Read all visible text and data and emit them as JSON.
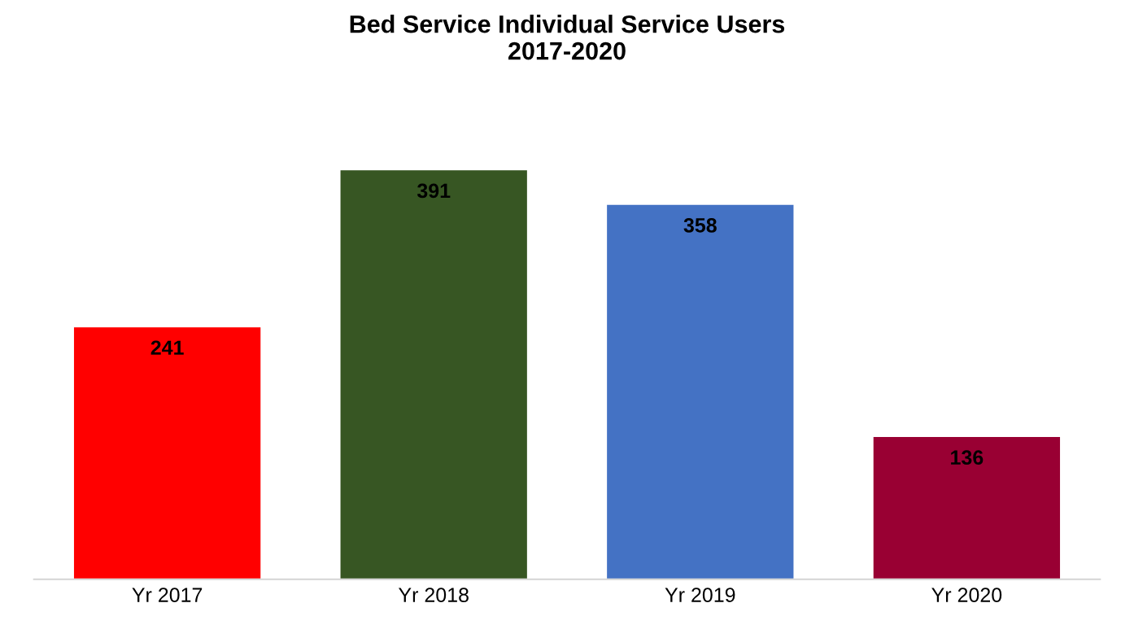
{
  "chart_data": {
    "type": "bar",
    "title": "Bed Service Individual Service Users\n2017-2020",
    "categories": [
      "Yr 2017",
      "Yr 2018",
      "Yr 2019",
      "Yr 2020"
    ],
    "values": [
      241,
      391,
      358,
      136
    ],
    "colors": [
      "#ff0000",
      "#375623",
      "#4472c4",
      "#990033"
    ],
    "data_labels": true,
    "grid": false,
    "legend": false,
    "tick_labels": "x"
  }
}
